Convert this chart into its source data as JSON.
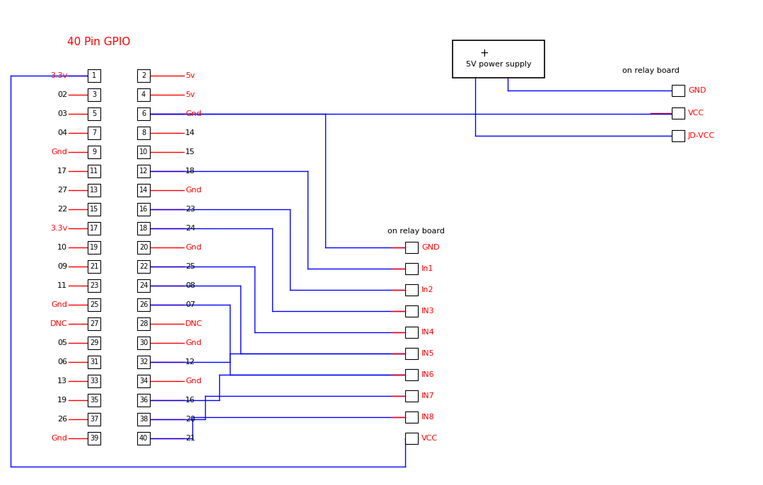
{
  "title": "40 Pin GPIO",
  "bg_color": "#ffffff",
  "title_color": "#cc0000",
  "left_labels": [
    "3.3v",
    "02",
    "03",
    "04",
    "Gnd",
    "17",
    "27",
    "22",
    "3.3v",
    "10",
    "09",
    "11",
    "Gnd",
    "DNC",
    "05",
    "06",
    "13",
    "19",
    "26",
    "Gnd"
  ],
  "left_pins": [
    1,
    3,
    5,
    7,
    9,
    11,
    13,
    15,
    17,
    19,
    21,
    23,
    25,
    27,
    29,
    31,
    33,
    35,
    37,
    39
  ],
  "right_labels": [
    "5v",
    "5v",
    "Gnd",
    "14",
    "15",
    "18",
    "Gnd",
    "23",
    "24",
    "Gnd",
    "25",
    "08",
    "07",
    "DNC",
    "Gnd",
    "12",
    "Gnd",
    "16",
    "20",
    "21"
  ],
  "right_pins": [
    2,
    4,
    6,
    8,
    10,
    12,
    14,
    16,
    18,
    20,
    22,
    24,
    26,
    28,
    30,
    32,
    34,
    36,
    38,
    40
  ],
  "relay_lower_labels": [
    "GND",
    "In1",
    "In2",
    "IN3",
    "IN4",
    "IN5",
    "IN6",
    "IN7",
    "IN8",
    "VCC"
  ],
  "relay_upper_labels": [
    "GND",
    "VCC",
    "JD-VCC"
  ],
  "blue": "#0000ff",
  "red": "#ff0000",
  "black": "#000000"
}
